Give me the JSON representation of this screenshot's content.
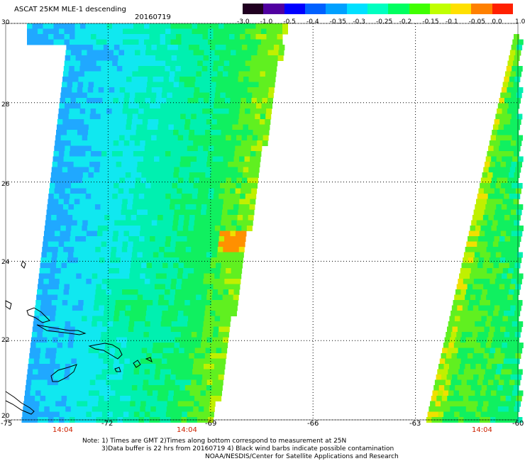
{
  "header": {
    "product": "ASCAT 25KM MLE-1 descending",
    "date": "20160719"
  },
  "colorbar": {
    "ticks": [
      "-3.0",
      "-1.0",
      "-0.5",
      "-0.4",
      "-0.35",
      "-0.3",
      "-0.25",
      "-0.2",
      "-0.15",
      "-0.1",
      "-0.05",
      "0.0",
      "1.0"
    ],
    "colors": [
      "#200020",
      "#5000a0",
      "#0000ff",
      "#0060ff",
      "#00a0ff",
      "#00e0ff",
      "#00ffc0",
      "#00ff60",
      "#40ff00",
      "#c0ff00",
      "#ffe000",
      "#ff8000",
      "#ff2000"
    ]
  },
  "axes": {
    "lat_labels": [
      "30",
      "28",
      "26",
      "24",
      "22",
      "20"
    ],
    "lon_labels": [
      "-75",
      "-72",
      "-69",
      "-66",
      "-63",
      "-60"
    ],
    "time_labels": [
      "14:04",
      "14:04",
      "14:04"
    ]
  },
  "footer": {
    "line1": "Note: 1) Times are GMT 2)Times along bottom correspond to measurement at 25N",
    "line2": "3)Data buffer is 22 hrs from 20160719 4) Black wind barbs indicate possible contamination",
    "line3": "NOAA/NESDIS/Center for Satellite Applications and Research"
  }
}
